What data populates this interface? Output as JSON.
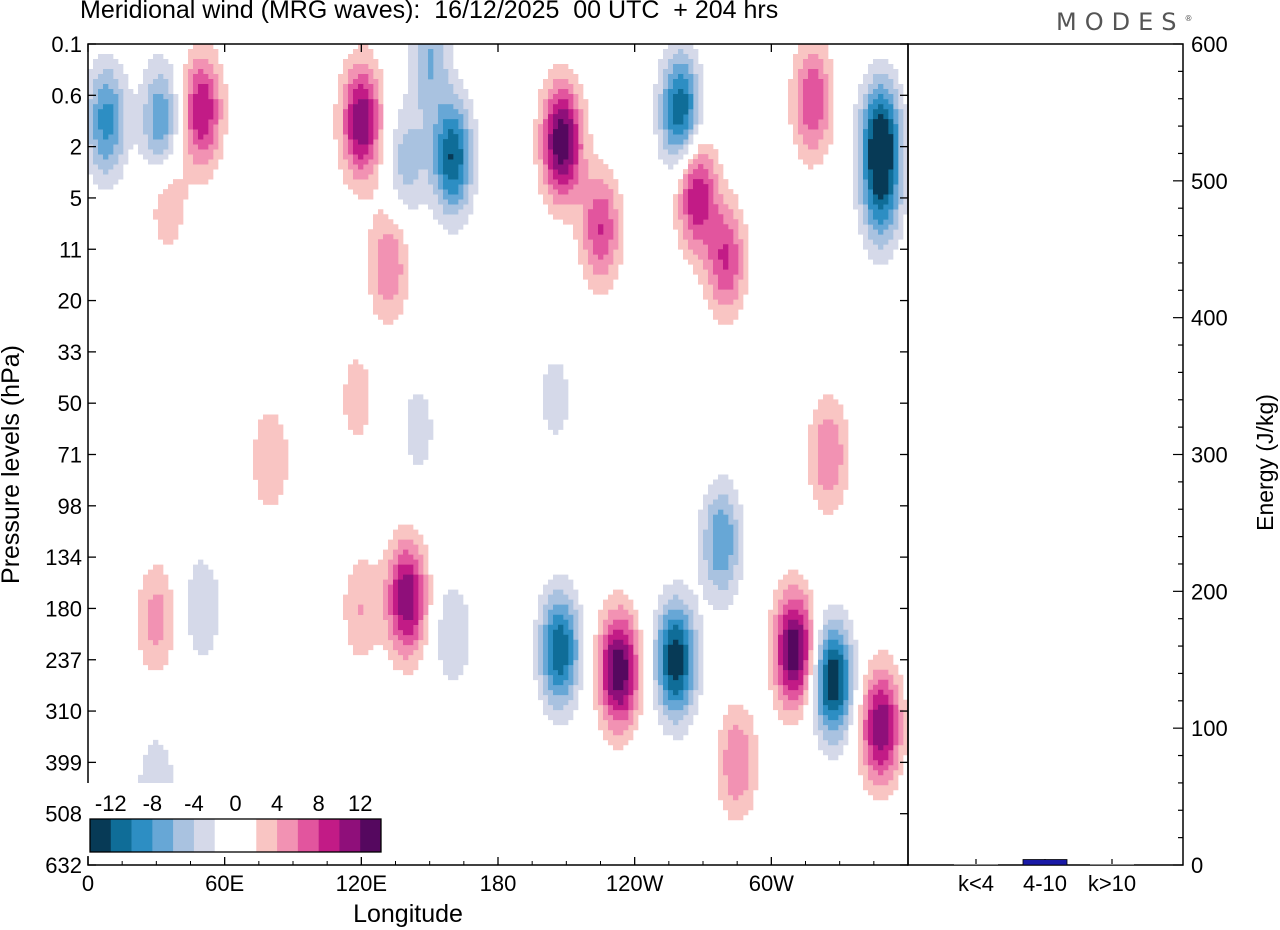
{
  "title": "Meridional wind (MRG waves):  16/12/2025  00 UTC  + 204 hrs",
  "brand": "MODES",
  "colors": {
    "neg": [
      "#073a56",
      "#0f6d98",
      "#2d8ec3",
      "#67a7d6",
      "#a9c2e0",
      "#d5d9e9"
    ],
    "pos": [
      "#f9c5c3",
      "#f292b3",
      "#e2559e",
      "#c21b86",
      "#8f0f7a",
      "#55085f"
    ],
    "bar": "#1a1aa6"
  },
  "chart_data": [
    {
      "type": "heatmap",
      "title": "Meridional wind (MRG waves):  16/12/2025  00 UTC  + 204 hrs",
      "xlabel": "Longitude",
      "ylabel": "Pressure levels (hPa)",
      "x_ticks": [
        "0",
        "60E",
        "120E",
        "180",
        "120W",
        "60W"
      ],
      "x_tick_values": [
        0,
        60,
        120,
        180,
        240,
        300
      ],
      "xlim": [
        0,
        360
      ],
      "y_ticks": [
        "0.1",
        "0.6",
        "2",
        "5",
        "11",
        "20",
        "33",
        "50",
        "71",
        "98",
        "134",
        "180",
        "237",
        "310",
        "399",
        "508",
        "632"
      ],
      "colorbar": {
        "labels": [
          "-12",
          "-8",
          "-4",
          "0",
          "4",
          "8",
          "12"
        ],
        "levels": [
          -14,
          -12,
          -10,
          -8,
          -6,
          -4,
          -2,
          0,
          2,
          4,
          6,
          8,
          10,
          12,
          14
        ]
      },
      "features": [
        {
          "lon": 50,
          "lev": 1.3,
          "v": 10
        },
        {
          "lon": 32,
          "lev": 1.5,
          "v": -8
        },
        {
          "lon": 8,
          "lev": 1.5,
          "v": -9
        },
        {
          "lon": 120,
          "lev": 1.5,
          "v": 12
        },
        {
          "lon": 160,
          "lev": 2.2,
          "v": -12
        },
        {
          "lon": 150,
          "lev": 0.3,
          "v": -6
        },
        {
          "lon": 208,
          "lev": 1.9,
          "v": 14
        },
        {
          "lon": 260,
          "lev": 1.3,
          "v": -12
        },
        {
          "lon": 267,
          "lev": 2.9,
          "v": 10
        },
        {
          "lon": 318,
          "lev": 1.1,
          "v": 8
        },
        {
          "lon": 348,
          "lev": 1.8,
          "v": -13
        },
        {
          "lon": 348,
          "lev": 3.0,
          "v": -8
        },
        {
          "lon": 225,
          "lev": 3.6,
          "v": 8
        },
        {
          "lon": 280,
          "lev": 4.2,
          "v": 8
        },
        {
          "lon": 132,
          "lev": 4.3,
          "v": 6
        },
        {
          "lon": 35,
          "lev": 3.0,
          "v": 4
        },
        {
          "lon": 140,
          "lev": 2.3,
          "v": -5
        },
        {
          "lon": 140,
          "lev": 10.8,
          "v": 12
        },
        {
          "lon": 120,
          "lev": 11.0,
          "v": 4
        },
        {
          "lon": 160,
          "lev": 11.5,
          "v": -4
        },
        {
          "lon": 30,
          "lev": 11.2,
          "v": 5
        },
        {
          "lon": 50,
          "lev": 11.0,
          "v": -4
        },
        {
          "lon": 207,
          "lev": 11.8,
          "v": -12
        },
        {
          "lon": 233,
          "lev": 12.2,
          "v": 14
        },
        {
          "lon": 258,
          "lev": 12.0,
          "v": -14
        },
        {
          "lon": 278,
          "lev": 9.7,
          "v": -8
        },
        {
          "lon": 285,
          "lev": 14.0,
          "v": 6
        },
        {
          "lon": 310,
          "lev": 11.8,
          "v": 14
        },
        {
          "lon": 327,
          "lev": 12.4,
          "v": -14
        },
        {
          "lon": 348,
          "lev": 13.3,
          "v": 12
        },
        {
          "lon": 325,
          "lev": 8.0,
          "v": 6
        },
        {
          "lon": 80,
          "lev": 8.1,
          "v": 4
        },
        {
          "lon": 30,
          "lev": 14.5,
          "v": -4
        },
        {
          "lon": 145,
          "lev": 7.5,
          "v": -3
        },
        {
          "lon": 205,
          "lev": 6.9,
          "v": -3
        },
        {
          "lon": 118,
          "lev": 6.9,
          "v": 3
        }
      ],
      "sidebar": {
        "type": "bar",
        "ylabel": "Energy (J/kg)",
        "ylim": [
          0,
          600
        ],
        "y_ticks": [
          "0",
          "100",
          "200",
          "300",
          "400",
          "500",
          "600"
        ],
        "categories": [
          "k<4",
          "4-10",
          "k>10"
        ],
        "values": [
          0.5,
          4,
          0.5
        ]
      }
    }
  ]
}
